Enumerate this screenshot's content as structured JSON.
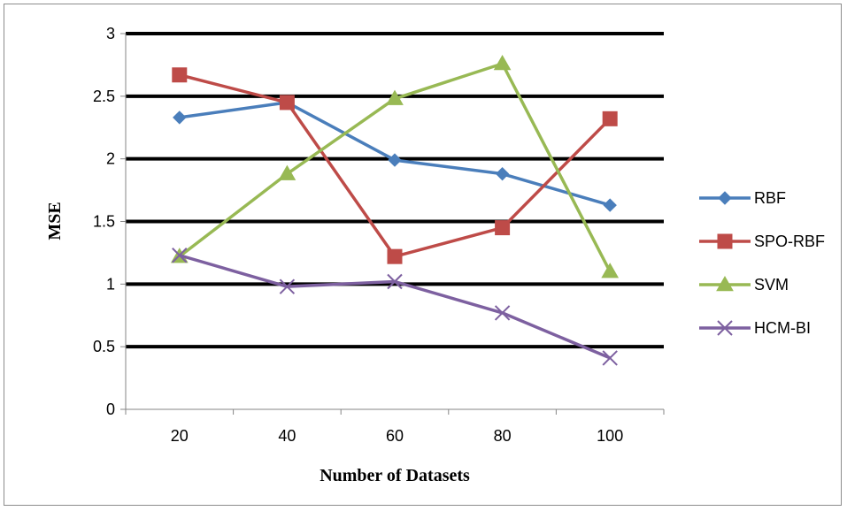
{
  "chart_data": {
    "type": "line",
    "title": "",
    "xlabel": "Number of Datasets",
    "ylabel": "MSE",
    "categories": [
      "20",
      "40",
      "60",
      "80",
      "100"
    ],
    "ylim": [
      0,
      3
    ],
    "yticks": [
      "0",
      "0.5",
      "1",
      "1.5",
      "2",
      "2.5",
      "3"
    ],
    "grid": "horizontal major gridlines",
    "legend_position": "right",
    "series": [
      {
        "name": "RBF",
        "color": "#4a7ebb",
        "marker": "diamond",
        "values": [
          2.33,
          2.45,
          1.99,
          1.88,
          1.63
        ]
      },
      {
        "name": "SPO-RBF",
        "color": "#be4b48",
        "marker": "square",
        "values": [
          2.67,
          2.45,
          1.22,
          1.45,
          2.32
        ]
      },
      {
        "name": "SVM",
        "color": "#98b954",
        "marker": "triangle",
        "values": [
          1.22,
          1.88,
          2.48,
          2.76,
          1.1
        ]
      },
      {
        "name": "HCM-BI",
        "color": "#7d60a0",
        "marker": "x",
        "values": [
          1.23,
          0.98,
          1.02,
          0.77,
          0.41
        ]
      }
    ]
  }
}
